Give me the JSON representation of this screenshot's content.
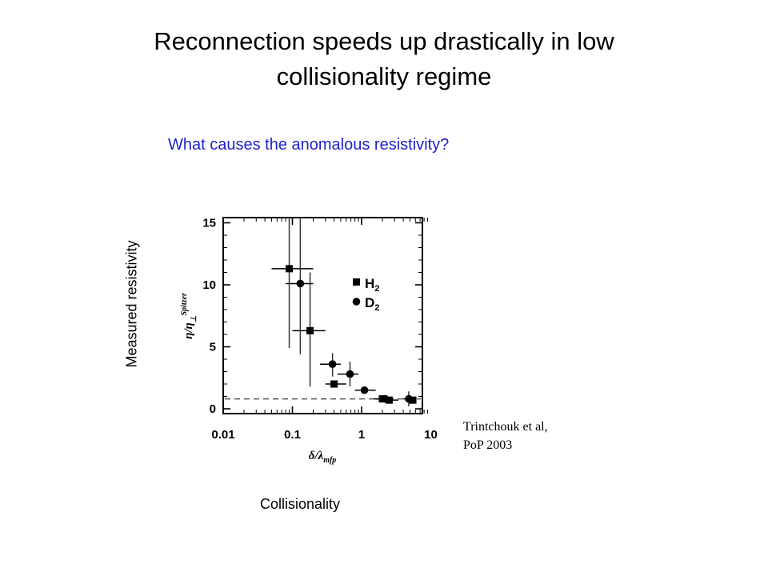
{
  "slide": {
    "title_line1": "Reconnection speeds up drastically in low",
    "title_line2": "collisionality regime",
    "subtitle": "What causes the anomalous resistivity?",
    "ylabel": "Measured resistivity",
    "xlabel": "Collisionality",
    "citation_line1": "Trintchouk et al,",
    "citation_line2": "PoP 2003"
  },
  "chart_data": {
    "type": "scatter",
    "xscale": "log",
    "xlim": [
      0.01,
      10
    ],
    "ylim": [
      0,
      16
    ],
    "x_ticks": [
      "0.01",
      "0.1",
      "1",
      "10"
    ],
    "y_ticks": [
      "0",
      "5",
      "10",
      "15"
    ],
    "xlabel_inner": "δ/λmfp",
    "ylabel_inner": "η/ηSpitzer⊥",
    "reference_line_y": 0.8,
    "legend": {
      "placement": "top-right"
    },
    "series": [
      {
        "name": "H2",
        "marker": "square",
        "points": [
          {
            "x": 0.09,
            "y": 11.3,
            "xerr": [
              0.05,
              0.2
            ],
            "yerr": [
              4.9,
              16
            ]
          },
          {
            "x": 0.18,
            "y": 6.3,
            "xerr": [
              0.1,
              0.3
            ],
            "yerr": [
              1.8,
              11
            ]
          },
          {
            "x": 0.4,
            "y": 2.0,
            "xerr": [
              0.3,
              0.6
            ]
          },
          {
            "x": 2.0,
            "y": 0.8,
            "xerr": [
              1.5,
              2.6
            ]
          },
          {
            "x": 2.5,
            "y": 0.7,
            "xerr": [
              2.0,
              3.4
            ]
          },
          {
            "x": 5.5,
            "y": 0.7
          }
        ]
      },
      {
        "name": "D2",
        "marker": "circle",
        "points": [
          {
            "x": 0.13,
            "y": 10.1,
            "xerr": [
              0.08,
              0.2
            ],
            "yerr": [
              4.4,
              16
            ]
          },
          {
            "x": 0.38,
            "y": 3.6,
            "xerr": [
              0.25,
              0.5
            ],
            "yerr": [
              2.6,
              4.5
            ]
          },
          {
            "x": 0.68,
            "y": 2.8,
            "xerr": [
              0.45,
              0.9
            ],
            "yerr": [
              1.8,
              3.8
            ]
          },
          {
            "x": 1.1,
            "y": 1.5,
            "xerr": [
              0.8,
              1.6
            ]
          },
          {
            "x": 2.2,
            "y": 0.8,
            "xerr": [
              1.6,
              2.8
            ]
          },
          {
            "x": 4.8,
            "y": 0.8,
            "xerr": [
              4.0,
              5.4
            ],
            "yerr": [
              0.2,
              1.4
            ]
          }
        ]
      }
    ]
  }
}
